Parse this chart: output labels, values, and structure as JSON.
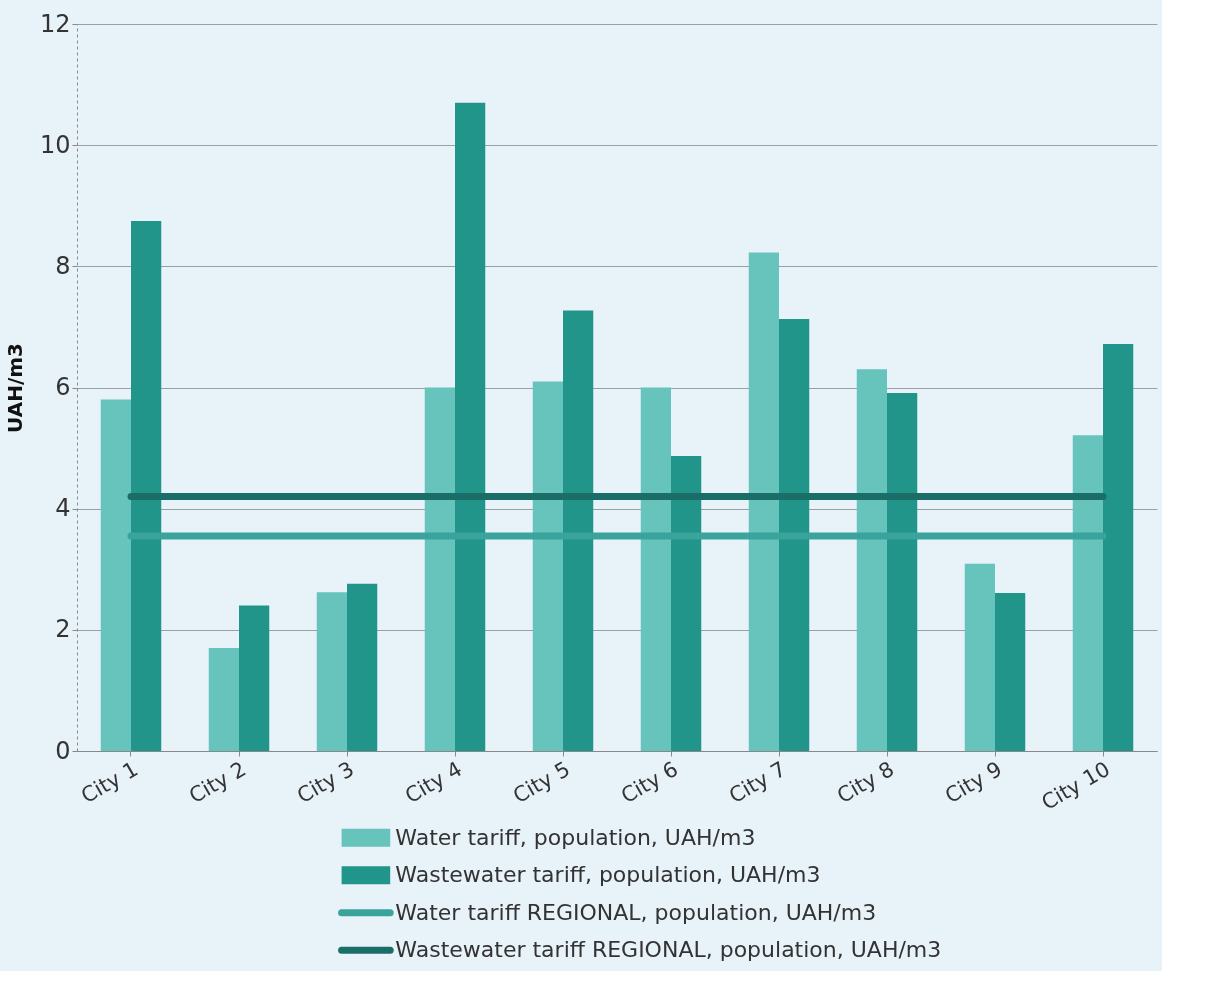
{
  "chart_data": {
    "type": "bar",
    "ylabel": "UAH/m3",
    "categories": [
      "City 1",
      "City 2",
      "City 3",
      "City 4",
      "City 5",
      "City 6",
      "City 7",
      "City 8",
      "City 9",
      "City 10"
    ],
    "series": [
      {
        "name": "Water tariff, population, UAH/m3",
        "color": "#66c4bd",
        "values": [
          5.8,
          1.7,
          2.62,
          6.0,
          6.1,
          6.0,
          8.23,
          6.3,
          3.09,
          5.21
        ]
      },
      {
        "name": "Wastewater tariff, population, UAH/m3",
        "color": "#21958a",
        "values": [
          8.75,
          2.4,
          2.76,
          10.7,
          7.27,
          4.87,
          7.13,
          5.91,
          2.61,
          6.72
        ]
      },
      {
        "name": "Water tariff REGIONAL, population, UAH/m3",
        "type": "line",
        "color": "#3aa39b",
        "values": [
          3.55,
          3.55,
          3.55,
          3.55,
          3.55,
          3.55,
          3.55,
          3.55,
          3.55,
          3.55
        ]
      },
      {
        "name": "Wastewater tariff REGIONAL, population, UAH/m3",
        "type": "line",
        "color": "#1a6e67",
        "values": [
          4.2,
          4.2,
          4.2,
          4.2,
          4.2,
          4.2,
          4.2,
          4.2,
          4.2,
          4.2
        ]
      }
    ],
    "ylim": [
      0,
      12
    ],
    "yticks": [
      0,
      2,
      4,
      6,
      8,
      10,
      12
    ],
    "grid": "y",
    "legend": "bottom"
  }
}
